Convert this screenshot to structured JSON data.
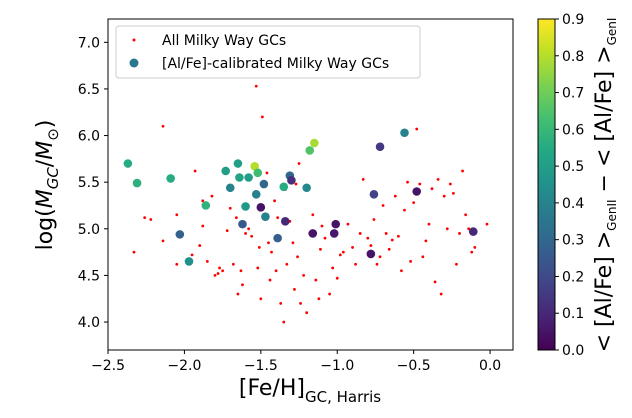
{
  "chart_data": {
    "type": "scatter",
    "xlabel": "[Fe/H]",
    "xlabel_sub": "GC, Harris",
    "ylabel_parts": {
      "pre": "log(",
      "M": "M",
      "sub": "GC",
      "slash": "/",
      "M2": "M",
      "sun": "⊙",
      "post": ")"
    },
    "cbar_label": {
      "l1": "< [Al/Fe] >",
      "s1": "GenII",
      "minus": " − ",
      "l2": "< [Al/Fe] >",
      "s2": "GenI"
    },
    "xlim": [
      -2.5,
      0.15
    ],
    "ylim": [
      3.7,
      7.25
    ],
    "xticks": [
      "−2.5",
      "−2.0",
      "−1.5",
      "−1.0",
      "−0.5",
      "0.0"
    ],
    "xtick_values": [
      -2.5,
      -2.0,
      -1.5,
      -1.0,
      -0.5,
      0.0
    ],
    "yticks": [
      "4.0",
      "4.5",
      "5.0",
      "5.5",
      "6.0",
      "6.5",
      "7.0"
    ],
    "ytick_values": [
      4.0,
      4.5,
      5.0,
      5.5,
      6.0,
      6.5,
      7.0
    ],
    "cbar_range": [
      0.0,
      0.9
    ],
    "cbar_ticks": [
      "0.0",
      "0.1",
      "0.2",
      "0.3",
      "0.4",
      "0.5",
      "0.6",
      "0.7",
      "0.8",
      "0.9"
    ],
    "cbar_tick_values": [
      0.0,
      0.1,
      0.2,
      0.3,
      0.4,
      0.5,
      0.6,
      0.7,
      0.8,
      0.9
    ],
    "legend": {
      "placement": "upper-left",
      "entries": [
        "All Milky Way GCs",
        "[Al/Fe]-calibrated Milky Way GCs"
      ]
    },
    "colors": {
      "all_gcs": "#ff0000"
    },
    "series": [
      {
        "name": "All Milky Way GCs",
        "points": [
          [
            -2.26,
            5.12
          ],
          [
            -2.22,
            5.1
          ],
          [
            -2.14,
            6.1
          ],
          [
            -2.14,
            4.87
          ],
          [
            -2.05,
            4.62
          ],
          [
            -1.98,
            4.65
          ],
          [
            -1.95,
            4.72
          ],
          [
            -1.93,
            5.62
          ],
          [
            -1.9,
            4.82
          ],
          [
            -1.88,
            5.03
          ],
          [
            -1.85,
            4.65
          ],
          [
            -1.8,
            4.5
          ],
          [
            -1.78,
            4.52
          ],
          [
            -1.77,
            4.58
          ],
          [
            -1.75,
            4.55
          ],
          [
            -1.73,
            5.62
          ],
          [
            -1.72,
            4.98
          ],
          [
            -1.7,
            5.22
          ],
          [
            -1.68,
            4.62
          ],
          [
            -1.65,
            4.3
          ],
          [
            -1.63,
            4.55
          ],
          [
            -1.62,
            4.4
          ],
          [
            -1.6,
            4.95
          ],
          [
            -1.58,
            5.0
          ],
          [
            -1.56,
            4.92
          ],
          [
            -1.53,
            6.53
          ],
          [
            -1.51,
            4.8
          ],
          [
            -1.5,
            4.25
          ],
          [
            -1.49,
            6.2
          ],
          [
            -1.47,
            5.1
          ],
          [
            -1.45,
            4.85
          ],
          [
            -1.43,
            4.75
          ],
          [
            -1.4,
            4.55
          ],
          [
            -1.39,
            5.12
          ],
          [
            -1.37,
            4.2
          ],
          [
            -1.35,
            4.0
          ],
          [
            -1.33,
            4.62
          ],
          [
            -1.31,
            5.08
          ],
          [
            -1.29,
            4.85
          ],
          [
            -1.27,
            5.48
          ],
          [
            -1.25,
            5.7
          ],
          [
            -1.24,
            4.2
          ],
          [
            -1.22,
            4.5
          ],
          [
            -1.2,
            4.1
          ],
          [
            -1.18,
            4.95
          ],
          [
            -1.16,
            5.15
          ],
          [
            -1.14,
            4.45
          ],
          [
            -1.12,
            4.25
          ],
          [
            -1.1,
            5.03
          ],
          [
            -1.08,
            4.9
          ],
          [
            -1.05,
            4.3
          ],
          [
            -1.03,
            4.58
          ],
          [
            -1.0,
            4.47
          ],
          [
            -0.98,
            4.72
          ],
          [
            -0.96,
            4.75
          ],
          [
            -0.93,
            5.05
          ],
          [
            -0.9,
            4.8
          ],
          [
            -0.88,
            4.62
          ],
          [
            -0.85,
            4.95
          ],
          [
            -0.83,
            5.53
          ],
          [
            -0.8,
            4.9
          ],
          [
            -0.78,
            4.82
          ],
          [
            -0.76,
            5.1
          ],
          [
            -0.74,
            4.62
          ],
          [
            -0.72,
            4.7
          ],
          [
            -0.7,
            5.25
          ],
          [
            -0.68,
            4.95
          ],
          [
            -0.66,
            4.78
          ],
          [
            -0.64,
            4.88
          ],
          [
            -0.62,
            5.35
          ],
          [
            -0.6,
            4.92
          ],
          [
            -0.58,
            4.55
          ],
          [
            -0.56,
            5.2
          ],
          [
            -0.54,
            5.5
          ],
          [
            -0.52,
            4.65
          ],
          [
            -0.5,
            5.28
          ],
          [
            -0.48,
            6.07
          ],
          [
            -0.46,
            5.48
          ],
          [
            -0.44,
            4.7
          ],
          [
            -0.42,
            4.87
          ],
          [
            -0.4,
            5.05
          ],
          [
            -0.38,
            5.43
          ],
          [
            -0.36,
            4.43
          ],
          [
            -0.34,
            5.53
          ],
          [
            -0.32,
            4.3
          ],
          [
            -0.3,
            5.35
          ],
          [
            -0.28,
            5.0
          ],
          [
            -0.26,
            5.48
          ],
          [
            -0.24,
            5.38
          ],
          [
            -0.22,
            4.62
          ],
          [
            -0.2,
            4.95
          ],
          [
            -0.18,
            5.62
          ],
          [
            -0.16,
            5.15
          ],
          [
            -0.14,
            5.0
          ],
          [
            -0.12,
            4.75
          ],
          [
            -0.1,
            4.8
          ],
          [
            -0.02,
            5.05
          ],
          [
            -1.82,
            5.35
          ],
          [
            -1.66,
            5.12
          ],
          [
            -1.46,
            5.6
          ],
          [
            -1.41,
            5.3
          ],
          [
            -1.34,
            5.42
          ],
          [
            -1.26,
            4.7
          ],
          [
            -1.11,
            4.78
          ],
          [
            -1.52,
            4.58
          ],
          [
            -1.88,
            5.3
          ],
          [
            -2.33,
            4.75
          ],
          [
            -2.05,
            5.15
          ],
          [
            -1.28,
            4.35
          ],
          [
            -1.44,
            4.45
          ]
        ]
      },
      {
        "name": "[Al/Fe]-calibrated Milky Way GCs",
        "points": [
          [
            -2.37,
            5.7,
            0.55
          ],
          [
            -2.31,
            5.49,
            0.57
          ],
          [
            -2.09,
            5.54,
            0.55
          ],
          [
            -2.03,
            4.94,
            0.28
          ],
          [
            -1.97,
            4.65,
            0.45
          ],
          [
            -1.86,
            5.25,
            0.58
          ],
          [
            -1.73,
            5.62,
            0.5
          ],
          [
            -1.7,
            5.44,
            0.4
          ],
          [
            -1.65,
            5.7,
            0.5
          ],
          [
            -1.64,
            5.55,
            0.52
          ],
          [
            -1.62,
            5.05,
            0.25
          ],
          [
            -1.6,
            5.24,
            0.48
          ],
          [
            -1.58,
            5.55,
            0.5
          ],
          [
            -1.54,
            5.67,
            0.8
          ],
          [
            -1.53,
            5.37,
            0.4
          ],
          [
            -1.52,
            5.6,
            0.62
          ],
          [
            -1.5,
            5.23,
            0.05
          ],
          [
            -1.48,
            5.48,
            0.3
          ],
          [
            -1.47,
            5.13,
            0.4
          ],
          [
            -1.39,
            4.9,
            0.27
          ],
          [
            -1.35,
            5.45,
            0.55
          ],
          [
            -1.34,
            5.08,
            0.1
          ],
          [
            -1.31,
            5.57,
            0.3
          ],
          [
            -1.3,
            5.52,
            0.12
          ],
          [
            -1.2,
            5.44,
            0.42
          ],
          [
            -1.18,
            5.84,
            0.65
          ],
          [
            -1.15,
            5.92,
            0.78
          ],
          [
            -1.16,
            4.95,
            0.05
          ],
          [
            -1.02,
            4.95,
            0.06
          ],
          [
            -1.01,
            5.05,
            0.05
          ],
          [
            -0.78,
            4.73,
            0.05
          ],
          [
            -0.76,
            5.37,
            0.18
          ],
          [
            -0.72,
            5.88,
            0.15
          ],
          [
            -0.56,
            6.03,
            0.4
          ],
          [
            -0.48,
            5.4,
            0.05
          ],
          [
            -0.11,
            4.97,
            0.1
          ]
        ]
      }
    ]
  }
}
